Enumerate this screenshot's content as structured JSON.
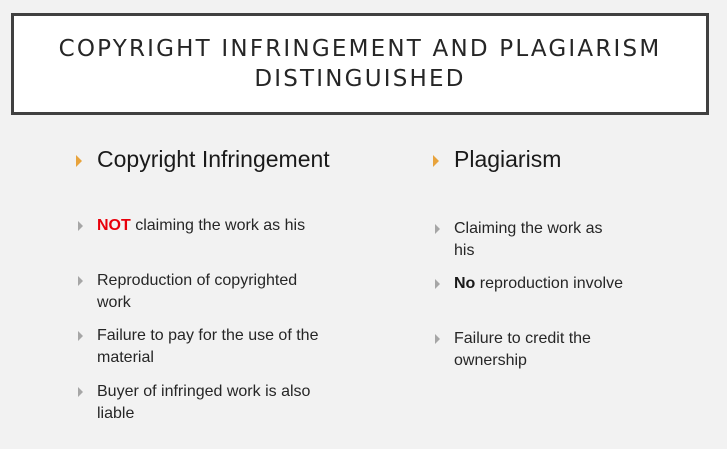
{
  "title": {
    "line1": "COPYRIGHT INFRINGEMENT AND PLAGIARISM",
    "line2": "DISTINGUISHED"
  },
  "colors": {
    "heading_bullet": "#e8a33c",
    "item_bullet": "#a6a6a6",
    "emphasis_red": "#e8000b"
  },
  "left": {
    "heading": "Copyright Infringement",
    "items": [
      {
        "emph": "NOT",
        "text": " claiming the work as his"
      },
      {
        "text": "Reproduction of copyrighted work"
      },
      {
        "text": "Failure to pay for the use of the material"
      },
      {
        "text": "Buyer of infringed work is also liable"
      }
    ]
  },
  "right": {
    "heading": "Plagiarism",
    "items": [
      {
        "text": "Claiming the work as his"
      },
      {
        "emph": "No",
        "text": " reproduction involve"
      },
      {
        "text": "Failure to credit the ownership"
      }
    ]
  }
}
